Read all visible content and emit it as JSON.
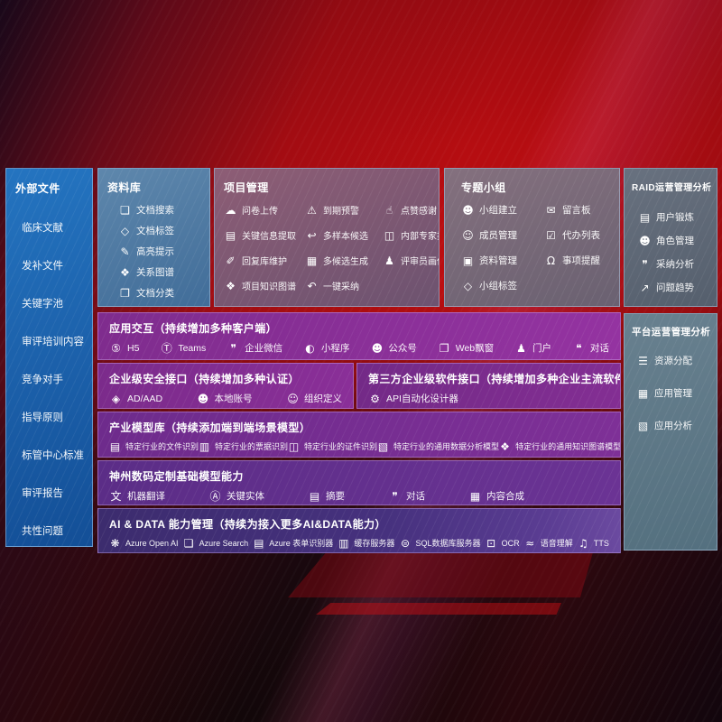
{
  "colors": {
    "background_red": "#b50d11",
    "sidebar_blue": "#1c61ab",
    "library_blue": "#4f7aa3",
    "project_mauve": "#7d586f",
    "groups_gray": "#77687a",
    "raid_slate": "#5e6876",
    "platform_slate": "#5e7886",
    "row_purple": "#8a2f98",
    "row_indigo": "#46317e"
  },
  "sidebar": {
    "title": "外部文件",
    "items": [
      {
        "label": "临床文献"
      },
      {
        "label": "发补文件"
      },
      {
        "label": "关键字池"
      },
      {
        "label": "审评培训内容"
      },
      {
        "label": "竞争对手"
      },
      {
        "label": "指导原则"
      },
      {
        "label": "标管中心标准"
      },
      {
        "label": "审评报告"
      },
      {
        "label": "共性问题"
      }
    ]
  },
  "library": {
    "title": "资料库",
    "items": [
      {
        "icon": "doc-search-icon",
        "glyph": "❏",
        "label": "文档搜索"
      },
      {
        "icon": "doc-tag-icon",
        "glyph": "◇",
        "label": "文档标签"
      },
      {
        "icon": "highlight-pen-icon",
        "glyph": "✎",
        "label": "高亮提示"
      },
      {
        "icon": "relation-graph-icon",
        "glyph": "❖",
        "label": "关系图谱"
      },
      {
        "icon": "doc-category-icon",
        "glyph": "❐",
        "label": "文档分类"
      }
    ]
  },
  "project": {
    "title": "项目管理",
    "items": [
      {
        "icon": "cloud-upload-icon",
        "glyph": "☁",
        "label": "问卷上传"
      },
      {
        "icon": "due-alarm-icon",
        "glyph": "⚠",
        "label": "到期预警"
      },
      {
        "icon": "thumbs-up-icon",
        "glyph": "☝",
        "label": "点赞感谢"
      },
      {
        "icon": "key-info-extract-icon",
        "glyph": "▤",
        "label": "关键信息提取"
      },
      {
        "icon": "multi-sample-candidate-icon",
        "glyph": "↩",
        "label": "多样本候选"
      },
      {
        "icon": "expert-ranking-icon",
        "glyph": "◫",
        "label": "内部专家排名"
      },
      {
        "icon": "reply-library-icon",
        "glyph": "✐",
        "label": "回复库维护"
      },
      {
        "icon": "multi-candidate-generate-icon",
        "glyph": "▦",
        "label": "多候选生成"
      },
      {
        "icon": "reviewer-profile-icon",
        "glyph": "♟",
        "label": "评审员画像"
      },
      {
        "icon": "project-knowledge-graph-icon",
        "glyph": "❖",
        "label": "项目知识图谱"
      },
      {
        "icon": "one-click-adopt-icon",
        "glyph": "↶",
        "label": "一键采纳"
      }
    ]
  },
  "groups": {
    "title": "专题小组",
    "items": [
      {
        "icon": "group-create-icon",
        "glyph": "☻",
        "label": "小组建立"
      },
      {
        "icon": "message-board-icon",
        "glyph": "✉",
        "label": "留言板"
      },
      {
        "icon": "member-manage-icon",
        "glyph": "☺",
        "label": "成员管理"
      },
      {
        "icon": "todo-list-icon",
        "glyph": "☑",
        "label": "代办列表"
      },
      {
        "icon": "material-manage-icon",
        "glyph": "▣",
        "label": "资料管理"
      },
      {
        "icon": "reminder-bell-icon",
        "glyph": "Ω",
        "label": "事项提醒"
      },
      {
        "icon": "group-tag-icon",
        "glyph": "◇",
        "label": "小组标签"
      }
    ]
  },
  "raid": {
    "title": "RAID运营管理分析",
    "items": [
      {
        "icon": "user-training-icon",
        "glyph": "▤",
        "label": "用户锻炼"
      },
      {
        "icon": "role-manage-icon",
        "glyph": "☻",
        "label": "角色管理"
      },
      {
        "icon": "adoption-analysis-icon",
        "glyph": "❞",
        "label": "采纳分析"
      },
      {
        "icon": "issue-trend-icon",
        "glyph": "↗",
        "label": "问题趋势"
      }
    ]
  },
  "platform": {
    "title": "平台运营管理分析",
    "items": [
      {
        "icon": "resource-allocation-icon",
        "glyph": "☰",
        "label": "资源分配"
      },
      {
        "icon": "app-manage-icon",
        "glyph": "▦",
        "label": "应用管理"
      },
      {
        "icon": "app-analysis-icon",
        "glyph": "▧",
        "label": "应用分析"
      }
    ]
  },
  "interaction": {
    "title": "应用交互（持续增加多种客户端）",
    "items": [
      {
        "icon": "h5-icon",
        "glyph": "⑤",
        "label": "H5"
      },
      {
        "icon": "teams-icon",
        "glyph": "Ⓣ",
        "label": "Teams"
      },
      {
        "icon": "wechat-work-icon",
        "glyph": "❞",
        "label": "企业微信"
      },
      {
        "icon": "miniprogram-icon",
        "glyph": "◐",
        "label": "小程序"
      },
      {
        "icon": "official-account-icon",
        "glyph": "☻",
        "label": "公众号"
      },
      {
        "icon": "web-popup-icon",
        "glyph": "❐",
        "label": "Web飘窗"
      },
      {
        "icon": "portal-icon",
        "glyph": "♟",
        "label": "门户"
      },
      {
        "icon": "dialogue-icon",
        "glyph": "❝",
        "label": "对话"
      }
    ]
  },
  "security": {
    "title": "企业级安全接口（持续增加多种认证）",
    "items": [
      {
        "icon": "ad-aad-icon",
        "glyph": "◈",
        "label": "AD/AAD"
      },
      {
        "icon": "local-account-icon",
        "glyph": "☻",
        "label": "本地账号"
      },
      {
        "icon": "org-definition-icon",
        "glyph": "☺",
        "label": "组织定义"
      }
    ]
  },
  "thirdparty": {
    "title": "第三方企业级软件接口（持续增加多种企业主流软件接口）",
    "items": [
      {
        "icon": "api-designer-gear-icon",
        "glyph": "⚙",
        "label": "API自动化设计器"
      }
    ]
  },
  "industry": {
    "title": "产业模型库（持续添加端到端场景模型）",
    "items": [
      {
        "icon": "industry-file-recognition-icon",
        "glyph": "▤",
        "label": "特定行业的文件识别"
      },
      {
        "icon": "industry-receipt-recognition-icon",
        "glyph": "▥",
        "label": "特定行业的票据识别"
      },
      {
        "icon": "industry-certificate-recognition-icon",
        "glyph": "◫",
        "label": "特定行业的证件识别"
      },
      {
        "icon": "industry-data-analysis-model-icon",
        "glyph": "▧",
        "label": "特定行业的通用数据分析模型"
      },
      {
        "icon": "industry-knowledge-graph-model-icon",
        "glyph": "❖",
        "label": "特定行业的通用知识图谱模型"
      }
    ]
  },
  "base_models": {
    "title": "神州数码定制基础模型能力",
    "items": [
      {
        "icon": "machine-translation-icon",
        "glyph": "文",
        "label": "机器翻译"
      },
      {
        "icon": "key-entity-icon",
        "glyph": "Ⓐ",
        "label": "关键实体"
      },
      {
        "icon": "summary-icon",
        "glyph": "▤",
        "label": "摘要"
      },
      {
        "icon": "dialogue-icon",
        "glyph": "❞",
        "label": "对话"
      },
      {
        "icon": "content-synthesis-icon",
        "glyph": "▦",
        "label": "内容合成"
      }
    ]
  },
  "aidata": {
    "title": "AI & DATA 能力管理（持续为接入更多AI&DATA能力）",
    "items": [
      {
        "icon": "azure-openai-icon",
        "glyph": "❋",
        "label": "Azure Open AI"
      },
      {
        "icon": "azure-search-icon",
        "glyph": "❏",
        "label": "Azure Search"
      },
      {
        "icon": "azure-form-recognizer-icon",
        "glyph": "▤",
        "label": "Azure 表单识别器"
      },
      {
        "icon": "cache-server-icon",
        "glyph": "▥",
        "label": "缓存服务器"
      },
      {
        "icon": "sql-database-server-icon",
        "glyph": "⊜",
        "label": "SQL数据库服务器"
      },
      {
        "icon": "ocr-icon",
        "glyph": "⊡",
        "label": "OCR"
      },
      {
        "icon": "speech-understanding-icon",
        "glyph": "≈",
        "label": "语音理解"
      },
      {
        "icon": "tts-icon",
        "glyph": "♫",
        "label": "TTS"
      }
    ]
  }
}
